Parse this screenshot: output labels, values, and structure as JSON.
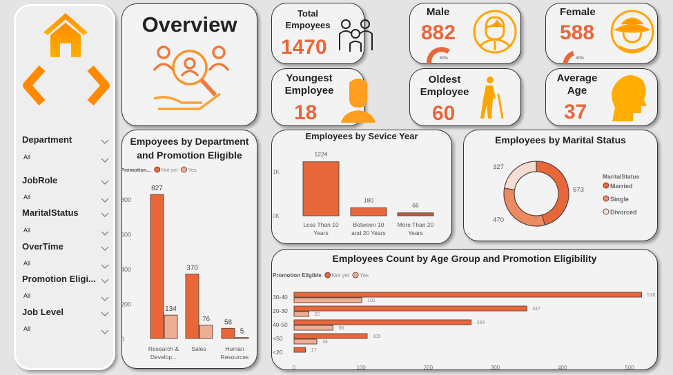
{
  "colors": {
    "accent": "#e8673a",
    "light": "#eeae94",
    "pale": "#f5ddd3",
    "single": "#ec8a62",
    "icon": "#ff9800"
  },
  "sidebar": {
    "icons": [
      "home-icon",
      "back-arrow-icon",
      "forward-arrow-icon"
    ],
    "filters": [
      {
        "label": "Department",
        "value": "All"
      },
      {
        "label": "JobRole",
        "value": "All"
      },
      {
        "label": "MaritalStatus",
        "value": "All"
      },
      {
        "label": "OverTime",
        "value": "All"
      },
      {
        "label": "Promotion Eligi...",
        "value": "All"
      },
      {
        "label": "Job Level",
        "value": "All"
      }
    ]
  },
  "overview": {
    "title": "Overview",
    "icon": "search-people-icon"
  },
  "kpis": {
    "total": {
      "label": "Total Empoyees",
      "value": "1470",
      "icon": "group-icon"
    },
    "male": {
      "label": "Male",
      "value": "882",
      "percent": "60%",
      "fraction": 0.6,
      "icon": "man-icon"
    },
    "female": {
      "label": "Female",
      "value": "588",
      "percent": "40%",
      "fraction": 0.4,
      "icon": "woman-icon"
    },
    "youngest": {
      "label": "Youngest Employee",
      "value": "18",
      "icon": "young-person-icon"
    },
    "oldest": {
      "label": "Oldest Employee",
      "value": "60",
      "icon": "elderly-icon"
    },
    "avg": {
      "label": "Average Age",
      "value": "37",
      "icon": "head-icon"
    }
  },
  "chart_data": [
    {
      "type": "bar",
      "title": "Empoyees by Department and Promotion Eligible",
      "legend_title": "Promotion...",
      "categories": [
        "Research & Develop...",
        "Sales",
        "Human Resources"
      ],
      "series": [
        {
          "name": "Not yet",
          "values": [
            827,
            370,
            58
          ]
        },
        {
          "name": "Yes",
          "values": [
            134,
            76,
            5
          ]
        }
      ],
      "yticks": [
        "0",
        "200",
        "400",
        "600",
        "800"
      ],
      "ylim": [
        0,
        900
      ],
      "legend": "top-left"
    },
    {
      "type": "bar",
      "title": "Employees by Sevice Year",
      "categories": [
        "Less Than 10 Years",
        "Between 10 and 20 Years",
        "More Than 20 Years"
      ],
      "values": [
        1224,
        180,
        66
      ],
      "yticks": [
        "0K",
        "1K"
      ],
      "ylim": [
        0,
        1400
      ]
    },
    {
      "type": "pie",
      "title": "Employees by Marital Status",
      "legend_title": "MaritalStatus",
      "labels": [
        "Married",
        "Single",
        "Divorced"
      ],
      "values": [
        673,
        470,
        327
      ],
      "legend": "right"
    },
    {
      "type": "bar",
      "orientation": "horizontal",
      "title": "Employees Count by Age Group and Promotion Eligibility",
      "legend_title": "Promotion Eligible",
      "categories": [
        "30-40",
        "20-30",
        "40-50",
        "<50",
        "<20"
      ],
      "series": [
        {
          "name": "Not yet",
          "values": [
            518,
            347,
            264,
            109,
            17
          ]
        },
        {
          "name": "Yes",
          "values": [
            101,
            22,
            58,
            34,
            null
          ]
        }
      ],
      "xticks": [
        "0",
        "100",
        "200",
        "300",
        "400",
        "500"
      ],
      "xlim": [
        0,
        530
      ],
      "legend": "top-left"
    }
  ]
}
